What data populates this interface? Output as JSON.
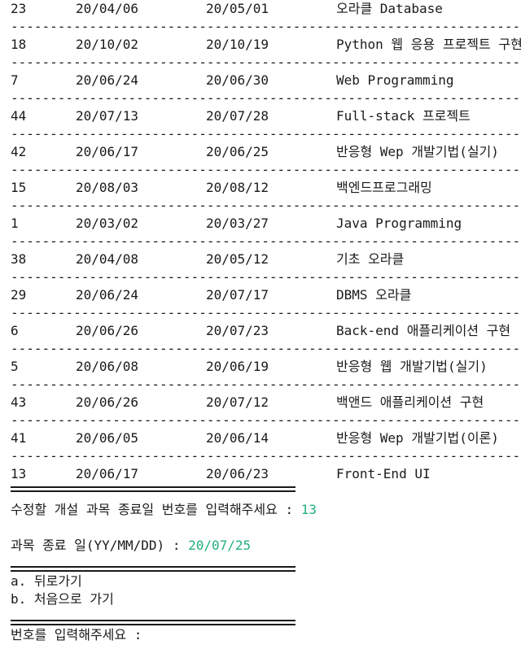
{
  "courses": [
    {
      "id": "23",
      "start": "20/04/06",
      "end": "20/05/01",
      "name": "오라클 Database"
    },
    {
      "id": "18",
      "start": "20/10/02",
      "end": "20/10/19",
      "name": "Python 웹 응용 프로젝트 구현"
    },
    {
      "id": "7",
      "start": "20/06/24",
      "end": "20/06/30",
      "name": "Web Programming"
    },
    {
      "id": "44",
      "start": "20/07/13",
      "end": "20/07/28",
      "name": "Full-stack 프로젝트"
    },
    {
      "id": "42",
      "start": "20/06/17",
      "end": "20/06/25",
      "name": "반응형 Wep 개발기법(실기)"
    },
    {
      "id": "15",
      "start": "20/08/03",
      "end": "20/08/12",
      "name": "백엔드프로그래밍"
    },
    {
      "id": "1",
      "start": "20/03/02",
      "end": "20/03/27",
      "name": "Java Programming"
    },
    {
      "id": "38",
      "start": "20/04/08",
      "end": "20/05/12",
      "name": "기초 오라클"
    },
    {
      "id": "29",
      "start": "20/06/24",
      "end": "20/07/17",
      "name": "DBMS 오라클"
    },
    {
      "id": "6",
      "start": "20/06/26",
      "end": "20/07/23",
      "name": "Back-end 애플리케이션 구현"
    },
    {
      "id": "5",
      "start": "20/06/08",
      "end": "20/06/19",
      "name": "반응형 웹 개발기법(실기)"
    },
    {
      "id": "43",
      "start": "20/06/26",
      "end": "20/07/12",
      "name": "백앤드 애플리케이션 구현"
    },
    {
      "id": "41",
      "start": "20/06/05",
      "end": "20/06/14",
      "name": "반응형 Wep 개발기법(이론)"
    },
    {
      "id": "13",
      "start": "20/06/17",
      "end": "20/06/23",
      "name": "Front-End UI"
    }
  ],
  "separator": "------------------------------------------------------------------------",
  "prompt_select": {
    "label": "수정할 개설 과목 종료일 번호를 입력해주세요 : ",
    "value": "13"
  },
  "prompt_date": {
    "label": "과목 종료 일(YY/MM/DD) : ",
    "value": "20/07/25"
  },
  "menu": {
    "back": "a. 뒤로가기",
    "home": "b. 처음으로 가기"
  },
  "prompt_number": {
    "label": "번호를 입력해주세요 : "
  },
  "colors": {
    "text": "#1a1a1a",
    "input": "#22b07a",
    "background": "#ffffff"
  }
}
